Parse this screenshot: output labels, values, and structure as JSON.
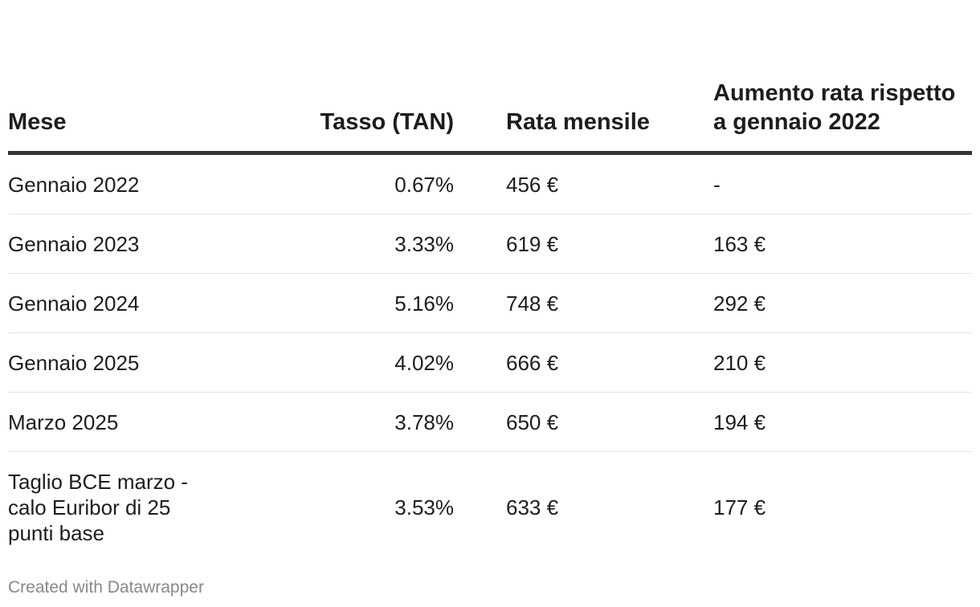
{
  "chart_data": {
    "type": "table",
    "columns": [
      {
        "key": "mese",
        "label": "Mese"
      },
      {
        "key": "tasso",
        "label": "Tasso (TAN)"
      },
      {
        "key": "rata",
        "label": "Rata mensile"
      },
      {
        "key": "aumento",
        "label": "Aumento rata rispetto a gennaio 2022"
      }
    ],
    "rows": [
      {
        "mese": "Gennaio 2022",
        "tasso": "0.67%",
        "rata": "456 €",
        "aumento": "-"
      },
      {
        "mese": "Gennaio 2023",
        "tasso": "3.33%",
        "rata": "619 €",
        "aumento": "163 €"
      },
      {
        "mese": "Gennaio 2024",
        "tasso": "5.16%",
        "rata": "748 €",
        "aumento": "292 €"
      },
      {
        "mese": "Gennaio 2025",
        "tasso": "4.02%",
        "rata": "666 €",
        "aumento": "210 €"
      },
      {
        "mese": "Marzo 2025",
        "tasso": "3.78%",
        "rata": "650 €",
        "aumento": "194 €"
      },
      {
        "mese": "Taglio BCE marzo - calo Euribor di 25 punti base",
        "tasso": "3.53%",
        "rata": "633 €",
        "aumento": "177 €"
      }
    ]
  },
  "footer": {
    "credit": "Created with Datawrapper"
  },
  "colors": {
    "text": "#1d1d1d",
    "header_rule": "#333333",
    "row_rule": "#e4e4e4",
    "credit": "#888888"
  }
}
